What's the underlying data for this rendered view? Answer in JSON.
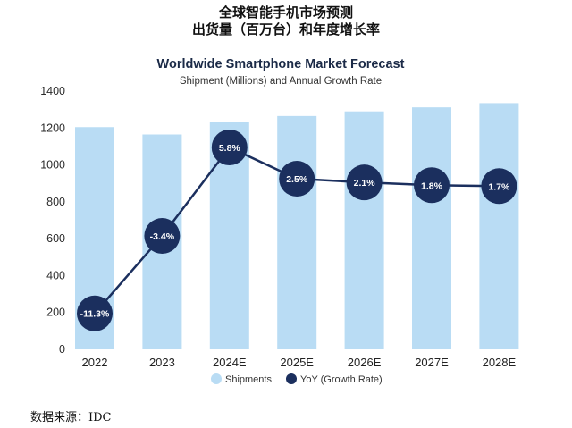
{
  "header": {
    "cn_title_line1": "全球智能手机市场预测",
    "cn_title_line2": "出货量（百万台）和年度增长率"
  },
  "chart_data": {
    "type": "bar",
    "title": "Worldwide Smartphone Market Forecast",
    "subtitle": "Shipment (Millions) and Annual Growth Rate",
    "categories": [
      "2022",
      "2023",
      "2024E",
      "2025E",
      "2026E",
      "2027E",
      "2028E"
    ],
    "ylim": [
      0,
      1400
    ],
    "yticks": [
      0,
      200,
      400,
      600,
      800,
      1000,
      1200,
      1400
    ],
    "grid": false,
    "legend_position": "bottom",
    "series": [
      {
        "name": "Shipments",
        "type": "bar",
        "color": "#b9dcf4",
        "values": [
          1205,
          1165,
          1235,
          1265,
          1290,
          1312,
          1335
        ]
      },
      {
        "name": "YoY (Growth Rate)",
        "type": "line",
        "color": "#1b2f5e",
        "labels": [
          "-11.3%",
          "-3.4%",
          "5.8%",
          "2.5%",
          "2.1%",
          "1.8%",
          "1.7%"
        ],
        "values": [
          -11.3,
          -3.4,
          5.8,
          2.5,
          2.1,
          1.8,
          1.7
        ],
        "plotted_on_left_axis": [
          195,
          615,
          1095,
          925,
          905,
          890,
          885
        ]
      }
    ]
  },
  "footer": {
    "source": "数据来源：IDC"
  }
}
